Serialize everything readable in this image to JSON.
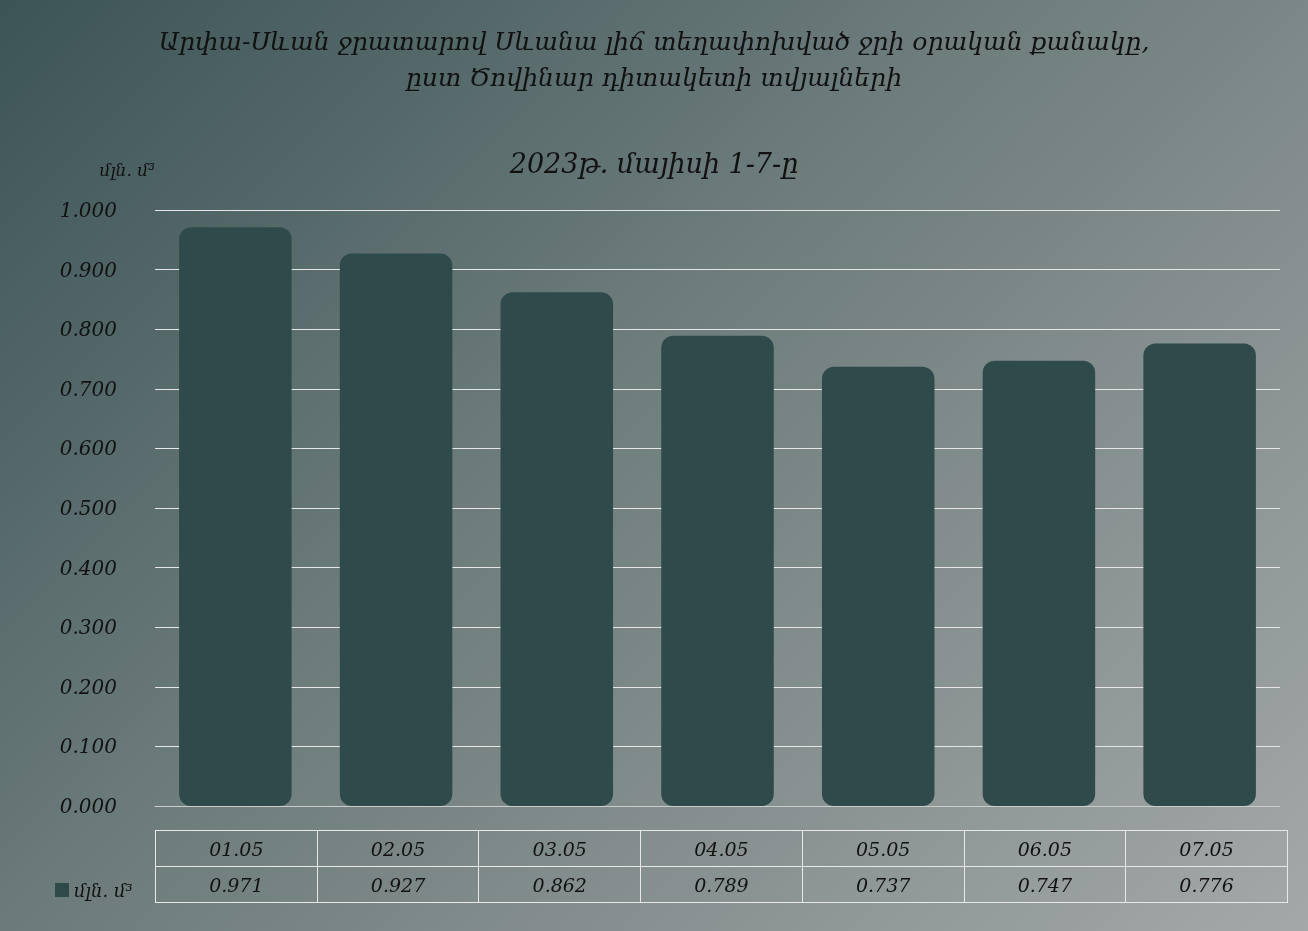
{
  "chart_data": {
    "type": "bar",
    "title": "Արփա-Սևան ջրատարով Սևանա լիճ տեղափոխված ջրի օրական քանակը,\nըստ Ծովինար դիտակետի տվյալների",
    "subtitle": "2023թ. մայիսի 1-7-ը",
    "ylabel": "մլն. մ³",
    "categories": [
      "01.05",
      "02.05",
      "03.05",
      "04.05",
      "05.05",
      "06.05",
      "07.05"
    ],
    "series": [
      {
        "name": "մլն. մ³",
        "color": "#2f4a4a",
        "values": [
          0.971,
          0.927,
          0.862,
          0.789,
          0.737,
          0.747,
          0.776
        ]
      }
    ],
    "ylim": [
      0,
      1
    ],
    "yticks": [
      {
        "value": 0,
        "label": "0.000"
      },
      {
        "value": 0.1,
        "label": "0.100"
      },
      {
        "value": 0.2,
        "label": "0.200"
      },
      {
        "value": 0.3,
        "label": "0.300"
      },
      {
        "value": 0.4,
        "label": "0.400"
      },
      {
        "value": 0.5,
        "label": "0.500"
      },
      {
        "value": 0.6,
        "label": "0.600"
      },
      {
        "value": 0.7,
        "label": "0.700"
      },
      {
        "value": 0.8,
        "label": "0.800"
      },
      {
        "value": 0.9,
        "label": "0.900"
      },
      {
        "value": 1,
        "label": "1.000"
      }
    ],
    "grid": "y",
    "legend": "bottom left",
    "data_labels": true
  }
}
